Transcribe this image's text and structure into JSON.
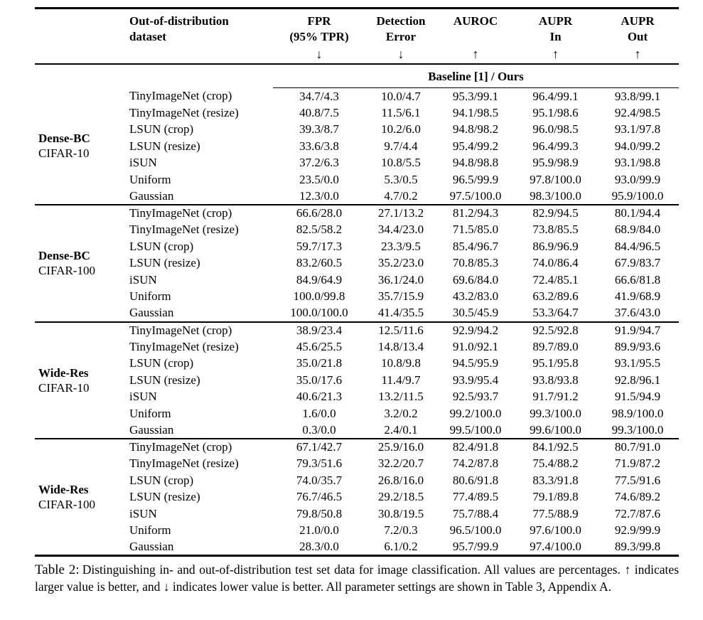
{
  "table": {
    "header": {
      "ood_col": {
        "line1": "Out-of-distribution",
        "line2": "dataset"
      },
      "metrics": [
        {
          "line1": "FPR",
          "line2": "(95% TPR)",
          "arrow": "↓",
          "arrow_meaning": "lower-is-better"
        },
        {
          "line1": "Detection",
          "line2": "Error",
          "arrow": "↓",
          "arrow_meaning": "lower-is-better"
        },
        {
          "line1": "AUROC",
          "line2": "",
          "arrow": "↑",
          "arrow_meaning": "higher-is-better"
        },
        {
          "line1": "AUPR",
          "line2": "In",
          "arrow": "↑",
          "arrow_meaning": "higher-is-better"
        },
        {
          "line1": "AUPR",
          "line2": "Out",
          "arrow": "↑",
          "arrow_meaning": "higher-is-better"
        }
      ],
      "span_header": "Baseline [1] / Ours"
    },
    "groups": [
      {
        "model": "Dense-BC",
        "dataset": "CIFAR-10",
        "rows": [
          {
            "ood_dataset": "TinyImageNet (crop)",
            "values": [
              "34.7/4.3",
              "10.0/4.7",
              "95.3/99.1",
              "96.4/99.1",
              "93.8/99.1"
            ]
          },
          {
            "ood_dataset": "TinyImageNet (resize)",
            "values": [
              "40.8/7.5",
              "11.5/6.1",
              "94.1/98.5",
              "95.1/98.6",
              "92.4/98.5"
            ]
          },
          {
            "ood_dataset": "LSUN (crop)",
            "values": [
              "39.3/8.7",
              "10.2/6.0",
              "94.8/98.2",
              "96.0/98.5",
              "93.1/97.8"
            ]
          },
          {
            "ood_dataset": "LSUN (resize)",
            "values": [
              "33.6/3.8",
              "9.7/4.4",
              "95.4/99.2",
              "96.4/99.3",
              "94.0/99.2"
            ]
          },
          {
            "ood_dataset": "iSUN",
            "values": [
              "37.2/6.3",
              "10.8/5.5",
              "94.8/98.8",
              "95.9/98.9",
              "93.1/98.8"
            ]
          },
          {
            "ood_dataset": "Uniform",
            "values": [
              "23.5/0.0",
              "5.3/0.5",
              "96.5/99.9",
              "97.8/100.0",
              "93.0/99.9"
            ]
          },
          {
            "ood_dataset": "Gaussian",
            "values": [
              "12.3/0.0",
              "4.7/0.2",
              "97.5/100.0",
              "98.3/100.0",
              "95.9/100.0"
            ]
          }
        ]
      },
      {
        "model": "Dense-BC",
        "dataset": "CIFAR-100",
        "rows": [
          {
            "ood_dataset": "TinyImageNet (crop)",
            "values": [
              "66.6/28.0",
              "27.1/13.2",
              "81.2/94.3",
              "82.9/94.5",
              "80.1/94.4"
            ]
          },
          {
            "ood_dataset": "TinyImageNet (resize)",
            "values": [
              "82.5/58.2",
              "34.4/23.0",
              "71.5/85.0",
              "73.8/85.5",
              "68.9/84.0"
            ]
          },
          {
            "ood_dataset": "LSUN (crop)",
            "values": [
              "59.7/17.3",
              "23.3/9.5",
              "85.4/96.7",
              "86.9/96.9",
              "84.4/96.5"
            ]
          },
          {
            "ood_dataset": "LSUN (resize)",
            "values": [
              "83.2/60.5",
              "35.2/23.0",
              "70.8/85.3",
              "74.0/86.4",
              "67.9/83.7"
            ]
          },
          {
            "ood_dataset": "iSUN",
            "values": [
              "84.9/64.9",
              "36.1/24.0",
              "69.6/84.0",
              "72.4/85.1",
              "66.6/81.8"
            ]
          },
          {
            "ood_dataset": "Uniform",
            "values": [
              "100.0/99.8",
              "35.7/15.9",
              "43.2/83.0",
              "63.2/89.6",
              "41.9/68.9"
            ]
          },
          {
            "ood_dataset": "Gaussian",
            "values": [
              "100.0/100.0",
              "41.4/35.5",
              "30.5/45.9",
              "53.3/64.7",
              "37.6/43.0"
            ]
          }
        ]
      },
      {
        "model": "Wide-Res",
        "dataset": "CIFAR-10",
        "rows": [
          {
            "ood_dataset": "TinyImageNet (crop)",
            "values": [
              "38.9/23.4",
              "12.5/11.6",
              "92.9/94.2",
              "92.5/92.8",
              "91.9/94.7"
            ]
          },
          {
            "ood_dataset": "TinyImageNet (resize)",
            "values": [
              "45.6/25.5",
              "14.8/13.4",
              "91.0/92.1",
              "89.7/89.0",
              "89.9/93.6"
            ]
          },
          {
            "ood_dataset": "LSUN (crop)",
            "values": [
              "35.0/21.8",
              "10.8/9.8",
              "94.5/95.9",
              "95.1/95.8",
              "93.1/95.5"
            ]
          },
          {
            "ood_dataset": "LSUN (resize)",
            "values": [
              "35.0/17.6",
              "11.4/9.7",
              "93.9/95.4",
              "93.8/93.8",
              "92.8/96.1"
            ]
          },
          {
            "ood_dataset": "iSUN",
            "values": [
              "40.6/21.3",
              "13.2/11.5",
              "92.5/93.7",
              "91.7/91.2",
              "91.5/94.9"
            ]
          },
          {
            "ood_dataset": "Uniform",
            "values": [
              "1.6/0.0",
              "3.2/0.2",
              "99.2/100.0",
              "99.3/100.0",
              "98.9/100.0"
            ]
          },
          {
            "ood_dataset": "Gaussian",
            "values": [
              "0.3/0.0",
              "2.4/0.1",
              "99.5/100.0",
              "99.6/100.0",
              "99.3/100.0"
            ]
          }
        ]
      },
      {
        "model": "Wide-Res",
        "dataset": "CIFAR-100",
        "rows": [
          {
            "ood_dataset": "TinyImageNet (crop)",
            "values": [
              "67.1/42.7",
              "25.9/16.0",
              "82.4/91.8",
              "84.1/92.5",
              "80.7/91.0"
            ]
          },
          {
            "ood_dataset": "TinyImageNet (resize)",
            "values": [
              "79.3/51.6",
              "32.2/20.7",
              "74.2/87.8",
              "75.4/88.2",
              "71.9/87.2"
            ]
          },
          {
            "ood_dataset": "LSUN (crop)",
            "values": [
              "74.0/35.7",
              "26.8/16.0",
              "80.6/91.8",
              "83.3/91.8",
              "77.5/91.6"
            ]
          },
          {
            "ood_dataset": "LSUN (resize)",
            "values": [
              "76.7/46.5",
              "29.2/18.5",
              "77.4/89.5",
              "79.1/89.8",
              "74.6/89.2"
            ]
          },
          {
            "ood_dataset": "iSUN",
            "values": [
              "79.8/50.8",
              "30.8/19.5",
              "75.7/88.4",
              "77.5/88.9",
              "72.7/87.6"
            ]
          },
          {
            "ood_dataset": "Uniform",
            "values": [
              "21.0/0.0",
              "7.2/0.3",
              "96.5/100.0",
              "97.6/100.0",
              "92.9/99.9"
            ]
          },
          {
            "ood_dataset": "Gaussian",
            "values": [
              "28.3/0.0",
              "6.1/0.2",
              "95.7/99.9",
              "97.4/100.0",
              "89.3/99.8"
            ]
          }
        ]
      }
    ]
  },
  "caption": {
    "label": "Table 2:",
    "text": "Distinguishing in- and out-of-distribution test set data for image classification.  All values are percentages. ↑ indicates larger value is better, and ↓ indicates lower value is better. All parameter settings are shown in Table 3, Appendix A."
  }
}
